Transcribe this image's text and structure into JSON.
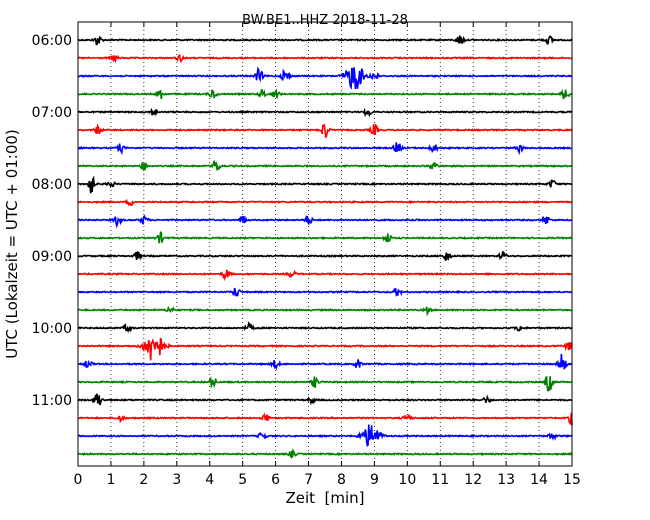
{
  "chart_data": {
    "type": "line",
    "title": "BW.BE1..HHZ 2018-11-28",
    "xlabel": "Zeit  [min]",
    "ylabel": "UTC (Lokalzeit = UTC + 01:00)",
    "xlim": [
      0,
      15
    ],
    "x_ticks": [
      "0",
      "1",
      "2",
      "3",
      "4",
      "5",
      "6",
      "7",
      "8",
      "9",
      "10",
      "11",
      "12",
      "13",
      "14",
      "15"
    ],
    "y_tick_labels": [
      "06:00",
      "07:00",
      "08:00",
      "09:00",
      "10:00",
      "11:00"
    ],
    "grid": "vertical dotted",
    "trace_colors": [
      "#000000",
      "#ff0000",
      "#0000ff",
      "#008000"
    ],
    "traces": [
      {
        "time": "06:00",
        "color": "#000000",
        "events": [
          [
            0.6,
            0.5
          ],
          [
            11.6,
            0.5
          ],
          [
            14.3,
            0.4
          ]
        ]
      },
      {
        "time": "06:15",
        "color": "#ff0000",
        "events": [
          [
            1.1,
            0.3
          ],
          [
            3.1,
            0.3
          ]
        ]
      },
      {
        "time": "06:30",
        "color": "#0000ff",
        "events": [
          [
            5.5,
            0.7
          ],
          [
            6.3,
            0.8
          ],
          [
            8.4,
            1.3
          ],
          [
            9.0,
            0.5
          ]
        ]
      },
      {
        "time": "06:45",
        "color": "#008000",
        "events": [
          [
            2.5,
            0.5
          ],
          [
            4.1,
            0.5
          ],
          [
            5.6,
            0.4
          ],
          [
            6.0,
            0.4
          ],
          [
            14.8,
            0.6
          ]
        ]
      },
      {
        "time": "07:00",
        "color": "#000000",
        "events": [
          [
            2.3,
            0.3
          ],
          [
            8.8,
            0.4
          ]
        ]
      },
      {
        "time": "07:15",
        "color": "#ff0000",
        "events": [
          [
            0.6,
            0.4
          ],
          [
            7.5,
            0.8
          ],
          [
            9.0,
            0.5
          ]
        ]
      },
      {
        "time": "07:30",
        "color": "#0000ff",
        "events": [
          [
            1.3,
            0.4
          ],
          [
            9.7,
            0.6
          ],
          [
            10.8,
            0.4
          ],
          [
            13.4,
            0.4
          ]
        ]
      },
      {
        "time": "07:45",
        "color": "#008000",
        "events": [
          [
            2.0,
            0.4
          ],
          [
            4.2,
            0.7
          ],
          [
            10.8,
            0.4
          ]
        ]
      },
      {
        "time": "08:00",
        "color": "#000000",
        "events": [
          [
            0.4,
            0.9
          ],
          [
            1.0,
            0.3
          ],
          [
            14.4,
            0.4
          ]
        ]
      },
      {
        "time": "08:15",
        "color": "#ff0000",
        "events": [
          [
            1.6,
            0.3
          ]
        ]
      },
      {
        "time": "08:30",
        "color": "#0000ff",
        "events": [
          [
            1.2,
            0.5
          ],
          [
            2.0,
            0.4
          ],
          [
            5.0,
            0.4
          ],
          [
            7.0,
            0.4
          ],
          [
            14.2,
            0.5
          ]
        ]
      },
      {
        "time": "08:45",
        "color": "#008000",
        "events": [
          [
            2.5,
            0.5
          ],
          [
            9.4,
            0.5
          ]
        ]
      },
      {
        "time": "09:00",
        "color": "#000000",
        "events": [
          [
            1.8,
            0.4
          ],
          [
            11.2,
            0.5
          ],
          [
            12.9,
            0.4
          ]
        ]
      },
      {
        "time": "09:15",
        "color": "#ff0000",
        "events": [
          [
            4.5,
            0.5
          ],
          [
            6.5,
            0.3
          ]
        ]
      },
      {
        "time": "09:30",
        "color": "#0000ff",
        "events": [
          [
            4.8,
            0.5
          ],
          [
            9.7,
            0.4
          ]
        ]
      },
      {
        "time": "09:45",
        "color": "#008000",
        "events": [
          [
            2.8,
            0.3
          ],
          [
            10.6,
            0.3
          ]
        ]
      },
      {
        "time": "10:00",
        "color": "#000000",
        "events": [
          [
            1.5,
            0.4
          ],
          [
            5.2,
            0.4
          ],
          [
            13.4,
            0.3
          ]
        ]
      },
      {
        "time": "10:15",
        "color": "#ff0000",
        "events": [
          [
            2.3,
            1.6
          ],
          [
            14.9,
            0.4
          ]
        ]
      },
      {
        "time": "10:30",
        "color": "#0000ff",
        "events": [
          [
            0.3,
            0.4
          ],
          [
            6.0,
            0.4
          ],
          [
            8.5,
            0.4
          ],
          [
            14.7,
            1.0
          ]
        ]
      },
      {
        "time": "10:45",
        "color": "#008000",
        "events": [
          [
            4.1,
            0.5
          ],
          [
            7.2,
            0.5
          ],
          [
            14.3,
            0.9
          ]
        ]
      },
      {
        "time": "11:00",
        "color": "#000000",
        "events": [
          [
            0.6,
            0.8
          ],
          [
            7.1,
            0.3
          ],
          [
            12.4,
            0.3
          ]
        ]
      },
      {
        "time": "11:15",
        "color": "#ff0000",
        "events": [
          [
            1.3,
            0.3
          ],
          [
            5.7,
            0.4
          ],
          [
            10.0,
            0.4
          ],
          [
            15.0,
            0.6
          ]
        ]
      },
      {
        "time": "11:30",
        "color": "#0000ff",
        "events": [
          [
            5.6,
            0.4
          ],
          [
            8.9,
            1.1
          ],
          [
            14.4,
            0.3
          ]
        ]
      },
      {
        "time": "11:45",
        "color": "#008000",
        "events": [
          [
            6.5,
            0.3
          ]
        ]
      }
    ]
  }
}
